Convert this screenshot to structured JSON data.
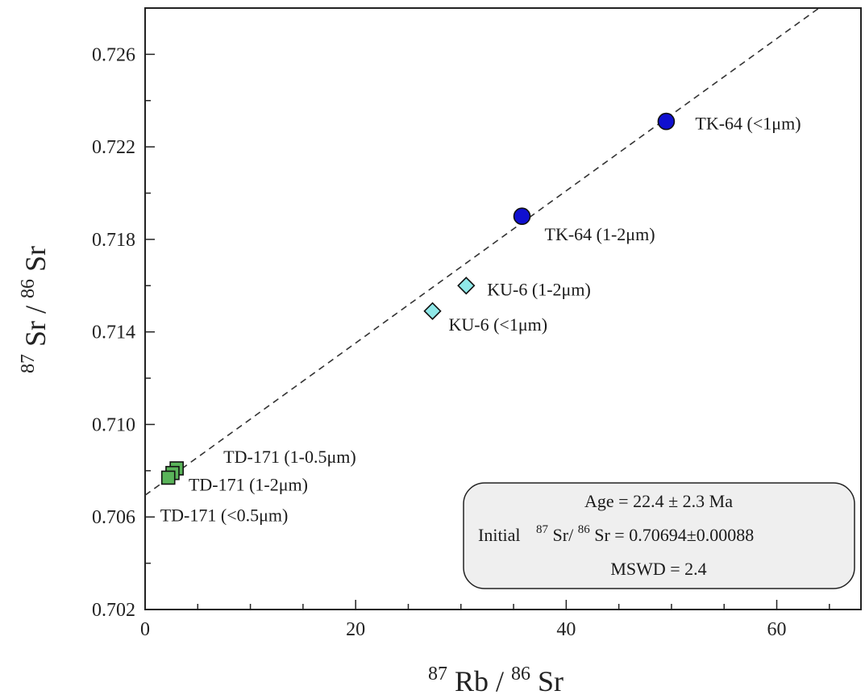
{
  "chart_data": {
    "type": "scatter",
    "xlim": [
      0,
      68
    ],
    "ylim": [
      0.702,
      0.728
    ],
    "x_ticks": [
      0,
      20,
      40,
      60
    ],
    "y_ticks": [
      0.702,
      0.706,
      0.71,
      0.714,
      0.718,
      0.722,
      0.726
    ],
    "x_tick_labels": [
      "0",
      "20",
      "40",
      "60"
    ],
    "y_tick_labels": [
      "0.702",
      "0.706",
      "0.710",
      "0.714",
      "0.718",
      "0.722",
      "0.726"
    ],
    "xlabel": {
      "sup1": "87",
      "a": "Rb / ",
      "sup2": "86",
      "b": "Sr"
    },
    "ylabel": {
      "sup1": "87",
      "a": "Sr / ",
      "sup2": "86",
      "b": "Sr"
    },
    "grid": false,
    "regression_line": {
      "style": "dashed",
      "intercept": 0.70694,
      "slope": 0.000329,
      "color": "#333333"
    },
    "points": [
      {
        "label": "TK-64 (<1μm)",
        "x": 49.5,
        "y": 0.7231,
        "marker": "circle",
        "color": "#1010d0"
      },
      {
        "label": "TK-64 (1-2μm)",
        "x": 35.8,
        "y": 0.719,
        "marker": "circle",
        "color": "#1010d0"
      },
      {
        "label": "KU-6 (1-2μm)",
        "x": 30.5,
        "y": 0.716,
        "marker": "diamond",
        "color": "#8fe8e8"
      },
      {
        "label": "KU-6 (<1μm)",
        "x": 27.3,
        "y": 0.7149,
        "marker": "diamond",
        "color": "#8fe8e8"
      },
      {
        "label": "TD-171 (1-0.5μm)",
        "x": 3.0,
        "y": 0.7081,
        "marker": "square",
        "color": "#5ab45a"
      },
      {
        "label": "TD-171 (1-2μm)",
        "x": 2.6,
        "y": 0.7079,
        "marker": "square",
        "color": "#5ab45a"
      },
      {
        "label": "TD-171 (<0.5μm)",
        "x": 2.2,
        "y": 0.7077,
        "marker": "square",
        "color": "#5ab45a"
      }
    ],
    "annotation_box": {
      "line1": "Age = 22.4 ± 2.3 Ma",
      "line2_prefix": "Initial",
      "line2_sup1": "87",
      "line2_a": "Sr/",
      "line2_sup2": "86",
      "line2_b": "Sr = 0.70694±0.00088",
      "line3": "MSWD = 2.4",
      "background": "#efefef"
    }
  }
}
